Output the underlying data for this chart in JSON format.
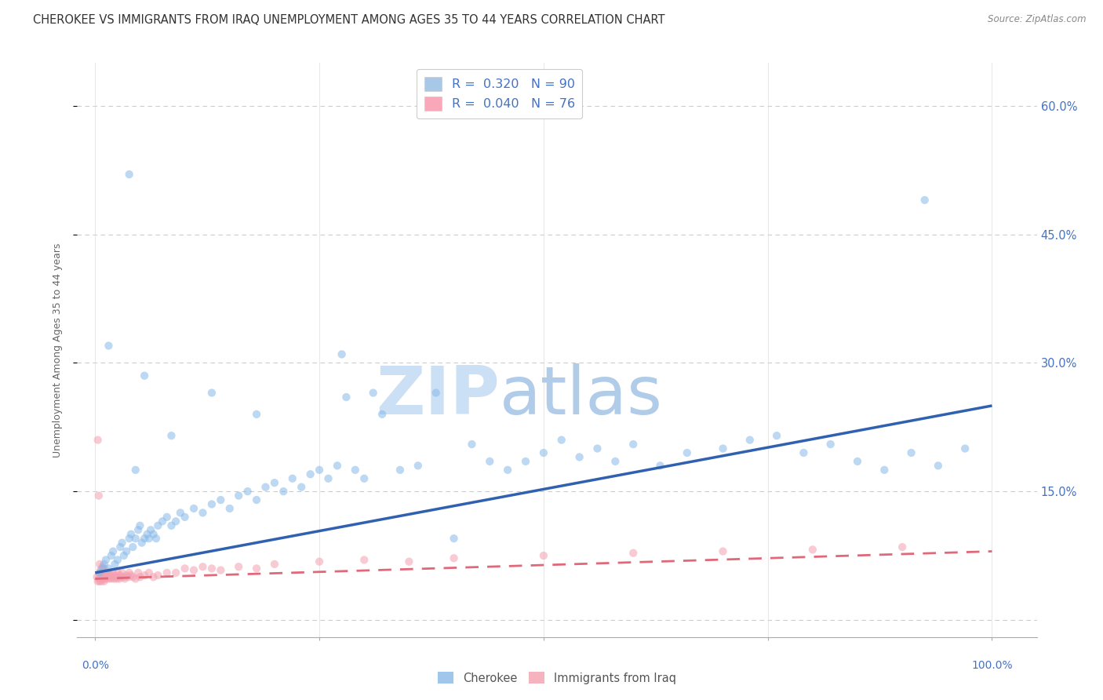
{
  "title": "CHEROKEE VS IMMIGRANTS FROM IRAQ UNEMPLOYMENT AMONG AGES 35 TO 44 YEARS CORRELATION CHART",
  "source": "Source: ZipAtlas.com",
  "ylabel": "Unemployment Among Ages 35 to 44 years",
  "background_color": "#ffffff",
  "watermark_zip_color": "#c8dff0",
  "watermark_atlas_color": "#b0cce8",
  "legend_color_1": "#a8c8e8",
  "legend_color_2": "#f8a8b8",
  "scatter_color_1": "#88b8e8",
  "scatter_color_2": "#f4a0b0",
  "line_color_1": "#3060b0",
  "line_color_2": "#e06878",
  "tick_color": "#4472c4",
  "ylabel_color": "#666666",
  "title_color": "#333333",
  "source_color": "#888888",
  "grid_color": "#cccccc",
  "cherokee_x": [
    0.005,
    0.008,
    0.01,
    0.012,
    0.015,
    0.018,
    0.02,
    0.022,
    0.025,
    0.028,
    0.03,
    0.032,
    0.035,
    0.038,
    0.04,
    0.042,
    0.045,
    0.048,
    0.05,
    0.052,
    0.055,
    0.058,
    0.06,
    0.062,
    0.065,
    0.068,
    0.07,
    0.075,
    0.08,
    0.085,
    0.09,
    0.095,
    0.1,
    0.11,
    0.12,
    0.13,
    0.14,
    0.15,
    0.16,
    0.17,
    0.18,
    0.19,
    0.2,
    0.21,
    0.22,
    0.23,
    0.24,
    0.25,
    0.26,
    0.27,
    0.28,
    0.29,
    0.3,
    0.32,
    0.34,
    0.36,
    0.38,
    0.4,
    0.42,
    0.44,
    0.46,
    0.48,
    0.5,
    0.52,
    0.54,
    0.56,
    0.58,
    0.6,
    0.63,
    0.66,
    0.7,
    0.73,
    0.76,
    0.79,
    0.82,
    0.85,
    0.88,
    0.91,
    0.94,
    0.97,
    0.038,
    0.275,
    0.925,
    0.015,
    0.055,
    0.18,
    0.31,
    0.085,
    0.045,
    0.13
  ],
  "cherokee_y": [
    0.055,
    0.06,
    0.065,
    0.07,
    0.06,
    0.075,
    0.08,
    0.065,
    0.07,
    0.085,
    0.09,
    0.075,
    0.08,
    0.095,
    0.1,
    0.085,
    0.095,
    0.105,
    0.11,
    0.09,
    0.095,
    0.1,
    0.095,
    0.105,
    0.1,
    0.095,
    0.11,
    0.115,
    0.12,
    0.11,
    0.115,
    0.125,
    0.12,
    0.13,
    0.125,
    0.135,
    0.14,
    0.13,
    0.145,
    0.15,
    0.14,
    0.155,
    0.16,
    0.15,
    0.165,
    0.155,
    0.17,
    0.175,
    0.165,
    0.18,
    0.26,
    0.175,
    0.165,
    0.24,
    0.175,
    0.18,
    0.265,
    0.095,
    0.205,
    0.185,
    0.175,
    0.185,
    0.195,
    0.21,
    0.19,
    0.2,
    0.185,
    0.205,
    0.18,
    0.195,
    0.2,
    0.21,
    0.215,
    0.195,
    0.205,
    0.185,
    0.175,
    0.195,
    0.18,
    0.2,
    0.52,
    0.31,
    0.49,
    0.32,
    0.285,
    0.24,
    0.265,
    0.215,
    0.175,
    0.265
  ],
  "iraq_x": [
    0.002,
    0.003,
    0.004,
    0.005,
    0.005,
    0.006,
    0.007,
    0.007,
    0.008,
    0.008,
    0.009,
    0.01,
    0.01,
    0.011,
    0.012,
    0.012,
    0.013,
    0.014,
    0.015,
    0.015,
    0.016,
    0.017,
    0.018,
    0.019,
    0.02,
    0.021,
    0.022,
    0.023,
    0.024,
    0.025,
    0.026,
    0.027,
    0.028,
    0.029,
    0.03,
    0.032,
    0.033,
    0.035,
    0.037,
    0.038,
    0.04,
    0.042,
    0.045,
    0.048,
    0.05,
    0.055,
    0.06,
    0.065,
    0.07,
    0.08,
    0.09,
    0.1,
    0.11,
    0.12,
    0.13,
    0.14,
    0.16,
    0.18,
    0.2,
    0.25,
    0.3,
    0.35,
    0.4,
    0.5,
    0.6,
    0.7,
    0.8,
    0.9,
    0.003,
    0.004,
    0.005,
    0.006,
    0.007,
    0.008,
    0.009,
    0.01
  ],
  "iraq_y": [
    0.05,
    0.045,
    0.048,
    0.052,
    0.045,
    0.048,
    0.05,
    0.045,
    0.052,
    0.048,
    0.05,
    0.048,
    0.045,
    0.052,
    0.055,
    0.048,
    0.05,
    0.052,
    0.055,
    0.048,
    0.05,
    0.052,
    0.048,
    0.05,
    0.055,
    0.048,
    0.052,
    0.05,
    0.048,
    0.055,
    0.05,
    0.048,
    0.052,
    0.05,
    0.055,
    0.05,
    0.048,
    0.052,
    0.05,
    0.055,
    0.052,
    0.05,
    0.048,
    0.055,
    0.05,
    0.052,
    0.055,
    0.05,
    0.052,
    0.055,
    0.055,
    0.06,
    0.058,
    0.062,
    0.06,
    0.058,
    0.062,
    0.06,
    0.065,
    0.068,
    0.07,
    0.068,
    0.072,
    0.075,
    0.078,
    0.08,
    0.082,
    0.085,
    0.21,
    0.145,
    0.065,
    0.058,
    0.055,
    0.062,
    0.055,
    0.06
  ],
  "cherokee_trend": [
    0.0,
    1.0
  ],
  "cherokee_trend_y": [
    0.055,
    0.25
  ],
  "iraq_trend": [
    0.0,
    1.0
  ],
  "iraq_trend_y": [
    0.048,
    0.08
  ],
  "xlim": [
    -0.02,
    1.05
  ],
  "ylim": [
    -0.02,
    0.65
  ],
  "scatter_size": 55,
  "scatter_alpha": 0.55
}
